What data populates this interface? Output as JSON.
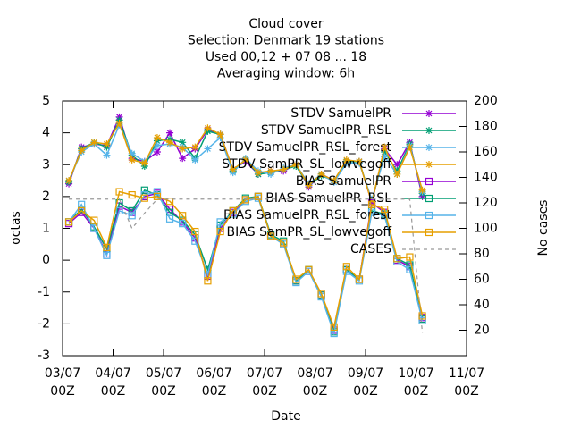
{
  "chart_data": {
    "type": "line",
    "title_lines": [
      "Cloud cover",
      "Selection: Denmark      19 stations",
      "Used  00,12  + 07 08 ... 18",
      "Averaging window:  6h"
    ],
    "xlabel": "Date",
    "ylabel": "octas",
    "y2label": "No cases",
    "xlim": [
      0,
      192
    ],
    "ylim": [
      -3,
      5
    ],
    "y2lim": [
      0,
      200
    ],
    "xticks": [
      {
        "value": 0,
        "label": "03/07",
        "label2": "00Z"
      },
      {
        "value": 24,
        "label": "04/07",
        "label2": "00Z"
      },
      {
        "value": 48,
        "label": "05/07",
        "label2": "00Z"
      },
      {
        "value": 72,
        "label": "06/07",
        "label2": "00Z"
      },
      {
        "value": 96,
        "label": "07/07",
        "label2": "00Z"
      },
      {
        "value": 120,
        "label": "08/07",
        "label2": "00Z"
      },
      {
        "value": 144,
        "label": "09/07",
        "label2": "00Z"
      },
      {
        "value": 168,
        "label": "10/07",
        "label2": "00Z"
      },
      {
        "value": 192,
        "label": "11/07",
        "label2": "00Z"
      }
    ],
    "yticks": [
      -3,
      -2,
      -1,
      0,
      1,
      2,
      3,
      4,
      5
    ],
    "y2ticks": [
      20,
      40,
      60,
      80,
      100,
      120,
      140,
      160,
      180,
      200
    ],
    "x": [
      3,
      9,
      15,
      21,
      27,
      33,
      39,
      45,
      51,
      57,
      63,
      69,
      75,
      81,
      87,
      93,
      99,
      105,
      111,
      117,
      123,
      129,
      135,
      141,
      147,
      153,
      159,
      165,
      171
    ],
    "series": [
      {
        "name": "STDV SamuelPR",
        "color": "#9400d3",
        "marker": "star",
        "values": [
          2.4,
          3.55,
          3.65,
          3.6,
          4.5,
          3.2,
          3.1,
          3.4,
          4.0,
          3.2,
          3.5,
          4.1,
          3.95,
          2.85,
          3.1,
          2.7,
          2.8,
          2.8,
          3.0,
          2.3,
          2.7,
          2.5,
          3.1,
          3.1,
          1.8,
          3.5,
          3.0,
          3.7,
          2.0
        ]
      },
      {
        "name": "STDV SamuelPR_RSL",
        "color": "#009e73",
        "marker": "star",
        "values": [
          2.45,
          3.5,
          3.7,
          3.55,
          4.4,
          3.3,
          2.95,
          3.75,
          3.8,
          3.7,
          3.2,
          4.05,
          3.95,
          2.8,
          3.15,
          2.7,
          2.75,
          2.85,
          2.95,
          2.35,
          2.65,
          2.5,
          3.1,
          3.1,
          1.85,
          3.4,
          2.8,
          3.65,
          2.1
        ]
      },
      {
        "name": "STDV SamuelPR_RSL_forest",
        "color": "#56b4e9",
        "marker": "star",
        "values": [
          2.5,
          3.4,
          3.65,
          3.3,
          4.25,
          3.35,
          3.1,
          3.6,
          3.65,
          3.55,
          3.15,
          3.5,
          3.85,
          2.75,
          3.2,
          2.8,
          2.7,
          2.9,
          3.0,
          2.4,
          2.7,
          2.45,
          3.05,
          3.05,
          1.9,
          3.25,
          2.7,
          3.6,
          2.15
        ]
      },
      {
        "name": "STDV SamPR_SL_lowvegoff",
        "color": "#e69f00",
        "marker": "star",
        "values": [
          2.5,
          3.45,
          3.7,
          3.65,
          4.3,
          3.15,
          3.05,
          3.85,
          3.7,
          3.5,
          3.55,
          4.15,
          3.95,
          2.85,
          3.15,
          2.75,
          2.8,
          2.85,
          3.0,
          2.35,
          2.7,
          2.5,
          3.15,
          3.1,
          1.8,
          3.55,
          2.7,
          3.55,
          2.2
        ]
      },
      {
        "name": "BIAS SamuelPR",
        "color": "#9400d3",
        "marker": "square",
        "values": [
          1.15,
          1.5,
          1.0,
          0.2,
          1.7,
          1.5,
          2.0,
          2.1,
          1.6,
          1.2,
          0.7,
          -0.5,
          1.0,
          1.5,
          1.9,
          2.0,
          0.75,
          0.55,
          -0.65,
          -0.35,
          -1.1,
          -2.2,
          -0.3,
          -0.6,
          1.8,
          1.5,
          0.0,
          -0.2,
          -1.8
        ]
      },
      {
        "name": "BIAS SamuelPR_RSL",
        "color": "#009e73",
        "marker": "square",
        "values": [
          1.2,
          1.6,
          1.05,
          0.35,
          1.8,
          1.55,
          2.2,
          2.05,
          1.5,
          1.25,
          0.8,
          -0.3,
          1.1,
          1.55,
          1.95,
          2.0,
          0.8,
          0.6,
          -0.65,
          -0.3,
          -1.1,
          -2.25,
          -0.3,
          -0.6,
          1.55,
          1.45,
          0.05,
          -0.15,
          -1.85
        ]
      },
      {
        "name": "BIAS SamuelPR_RSL_forest",
        "color": "#56b4e9",
        "marker": "square",
        "values": [
          1.2,
          1.75,
          1.0,
          0.15,
          1.55,
          1.4,
          2.05,
          2.15,
          1.3,
          1.15,
          0.6,
          -0.45,
          1.2,
          1.45,
          1.85,
          1.95,
          0.75,
          0.5,
          -0.7,
          -0.35,
          -1.15,
          -2.3,
          -0.35,
          -0.65,
          1.5,
          1.4,
          -0.05,
          -0.3,
          -1.9
        ]
      },
      {
        "name": "BIAS SamPR_SL_lowvegoff",
        "color": "#e69f00",
        "marker": "square",
        "values": [
          1.2,
          1.55,
          1.25,
          0.4,
          2.15,
          2.05,
          1.95,
          2.0,
          1.85,
          1.4,
          0.9,
          -0.65,
          0.9,
          1.55,
          1.9,
          2.0,
          0.75,
          0.55,
          -0.6,
          -0.3,
          -1.05,
          -2.1,
          -0.2,
          -0.6,
          1.75,
          1.6,
          0.05,
          0.1,
          -1.75
        ]
      },
      {
        "name": "CASES",
        "color": "#999999",
        "dashed": true,
        "axis": "y2",
        "values": [
          123,
          123,
          123,
          123,
          123,
          100,
          112,
          123,
          123,
          123,
          123,
          123,
          123,
          123,
          123,
          123,
          123,
          123,
          123,
          123,
          123,
          123,
          123,
          123,
          123,
          123,
          123,
          123,
          18
        ]
      }
    ]
  }
}
